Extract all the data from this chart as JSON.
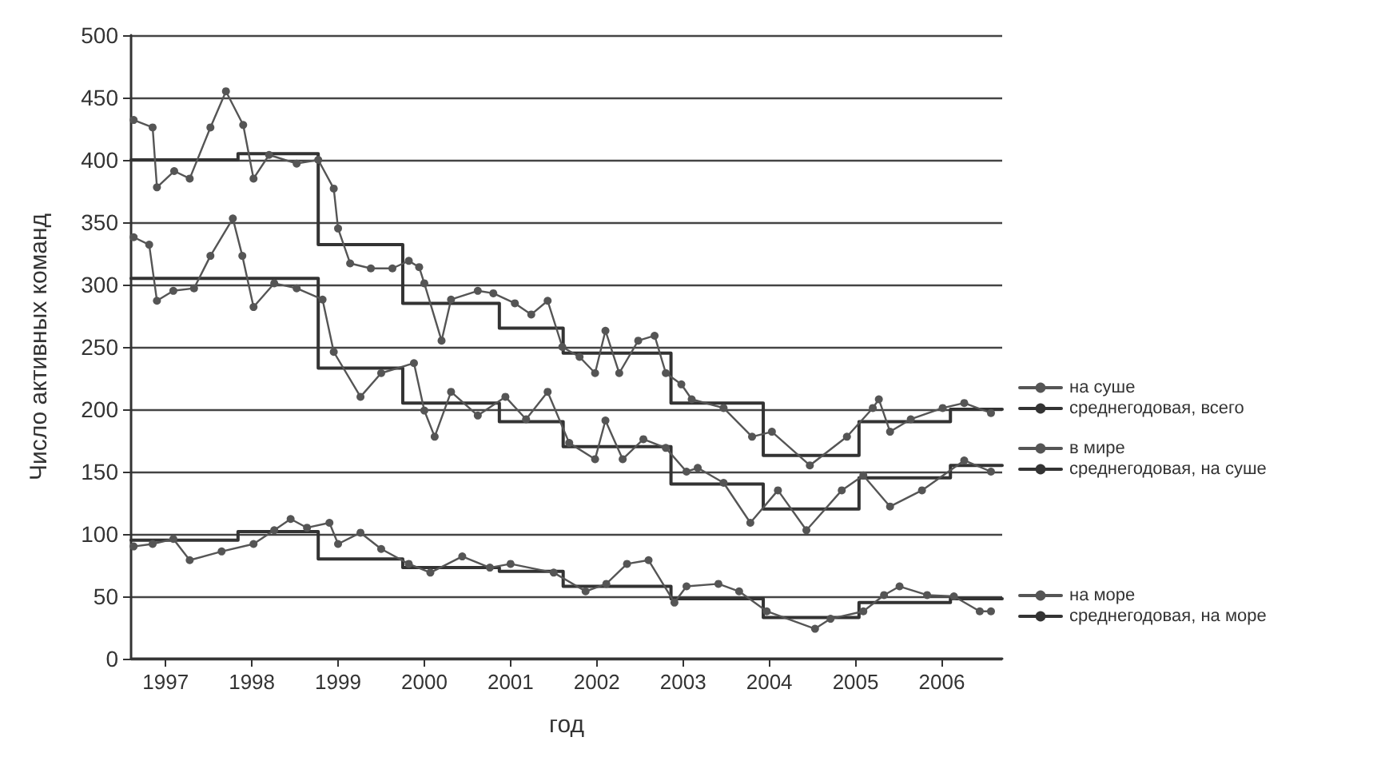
{
  "chart_data": {
    "type": "line",
    "xlabel": "год",
    "ylabel": "Число активных команд",
    "xlim": [
      1996.6,
      2006.7
    ],
    "xticks": [
      1997,
      1998,
      1999,
      2000,
      2001,
      2002,
      2003,
      2004,
      2005,
      2006
    ],
    "ylim": [
      0,
      500
    ],
    "yticks": [
      0,
      50,
      100,
      150,
      200,
      250,
      300,
      350,
      400,
      450,
      500
    ],
    "grid": "y",
    "legend": "right",
    "marker": "circle",
    "series": [
      {
        "name": "на суше",
        "color": "#555555",
        "x": [
          1996.63,
          1996.85,
          1996.9,
          1997.1,
          1997.28,
          1997.52,
          1997.7,
          1997.9,
          1998.02,
          1998.2,
          1998.52,
          1998.77,
          1998.95,
          1999.0,
          1999.14,
          1999.38,
          1999.63,
          1999.82,
          1999.94,
          2000.0,
          2000.2,
          2000.31,
          2000.62,
          2000.8,
          2001.05,
          2001.24,
          2001.43,
          2001.6,
          2001.8,
          2001.98,
          2002.1,
          2002.26,
          2002.48,
          2002.67,
          2002.8,
          2002.98,
          2003.1,
          2003.47,
          2003.8,
          2004.03,
          2004.47,
          2004.9,
          2005.2,
          2005.27,
          2005.4,
          2005.64,
          2006.01,
          2006.26,
          2006.57
        ],
        "values": [
          432,
          426,
          378,
          391,
          385,
          426,
          455,
          428,
          385,
          404,
          397,
          400,
          377,
          345,
          317,
          313,
          313,
          319,
          314,
          301,
          255,
          288,
          295,
          293,
          285,
          276,
          287,
          250,
          242,
          229,
          263,
          229,
          255,
          259,
          229,
          220,
          208,
          201,
          178,
          182,
          155,
          178,
          201,
          208,
          182,
          192,
          201,
          205,
          197
        ]
      },
      {
        "name": "среднегодовая, всего",
        "color": "#333333",
        "type": "step",
        "marker": "none",
        "x": [
          1996.6,
          1997.84,
          1998.77,
          1999.75,
          2000.87,
          2001.61,
          2002.86,
          2003.93,
          2005.04,
          2006.1,
          2006.7
        ],
        "values": [
          400,
          405,
          332,
          285,
          265,
          245,
          205,
          163,
          190,
          200,
          200
        ]
      },
      {
        "name": "в мире",
        "color": "#555555",
        "x": [
          1996.63,
          1996.81,
          1996.9,
          1997.09,
          1997.33,
          1997.52,
          1997.78,
          1997.89,
          1998.02,
          1998.26,
          1998.52,
          1998.82,
          1998.95,
          1999.26,
          1999.5,
          1999.88,
          2000.0,
          2000.12,
          2000.31,
          2000.62,
          2000.94,
          2001.18,
          2001.43,
          2001.68,
          2001.98,
          2002.1,
          2002.3,
          2002.54,
          2002.8,
          2003.04,
          2003.17,
          2003.47,
          2003.78,
          2004.1,
          2004.43,
          2004.84,
          2005.09,
          2005.4,
          2005.77,
          2006.26,
          2006.57
        ],
        "values": [
          338,
          332,
          287,
          295,
          297,
          323,
          353,
          323,
          282,
          301,
          297,
          288,
          246,
          210,
          229,
          237,
          199,
          178,
          214,
          195,
          210,
          192,
          214,
          173,
          160,
          191,
          160,
          176,
          169,
          150,
          153,
          141,
          109,
          135,
          103,
          135,
          147,
          122,
          135,
          159,
          150
        ]
      },
      {
        "name": "среднегодовая, на суше",
        "color": "#333333",
        "type": "step",
        "marker": "none",
        "x": [
          1996.6,
          1997.84,
          1998.77,
          1999.75,
          2000.87,
          2001.61,
          2002.86,
          2003.93,
          2005.04,
          2006.1,
          2006.7
        ],
        "values": [
          305,
          305,
          233,
          205,
          190,
          170,
          140,
          120,
          145,
          155,
          155
        ]
      },
      {
        "name": "на море",
        "color": "#555555",
        "x": [
          1996.63,
          1996.85,
          1997.09,
          1997.28,
          1997.65,
          1998.02,
          1998.26,
          1998.45,
          1998.64,
          1998.9,
          1999.0,
          1999.26,
          1999.5,
          1999.82,
          2000.07,
          2000.44,
          2000.76,
          2001.0,
          2001.5,
          2001.87,
          2002.11,
          2002.35,
          2002.6,
          2002.9,
          2003.04,
          2003.41,
          2003.65,
          2003.97,
          2004.53,
          2004.71,
          2005.09,
          2005.33,
          2005.51,
          2005.83,
          2006.14,
          2006.44,
          2006.57
        ],
        "values": [
          90,
          92,
          96,
          79,
          86,
          92,
          103,
          112,
          105,
          109,
          92,
          101,
          88,
          76,
          69,
          82,
          73,
          76,
          69,
          54,
          60,
          76,
          79,
          45,
          58,
          60,
          54,
          38,
          24,
          32,
          38,
          51,
          58,
          51,
          50,
          38,
          38
        ]
      },
      {
        "name": "среднегодовая, на море",
        "color": "#333333",
        "type": "step",
        "marker": "none",
        "x": [
          1996.6,
          1997.84,
          1998.77,
          1999.75,
          2000.87,
          2001.61,
          2002.86,
          2003.93,
          2005.04,
          2006.1,
          2006.7
        ],
        "values": [
          95,
          102,
          80,
          73,
          70,
          58,
          48,
          33,
          45,
          48,
          48
        ]
      }
    ]
  }
}
